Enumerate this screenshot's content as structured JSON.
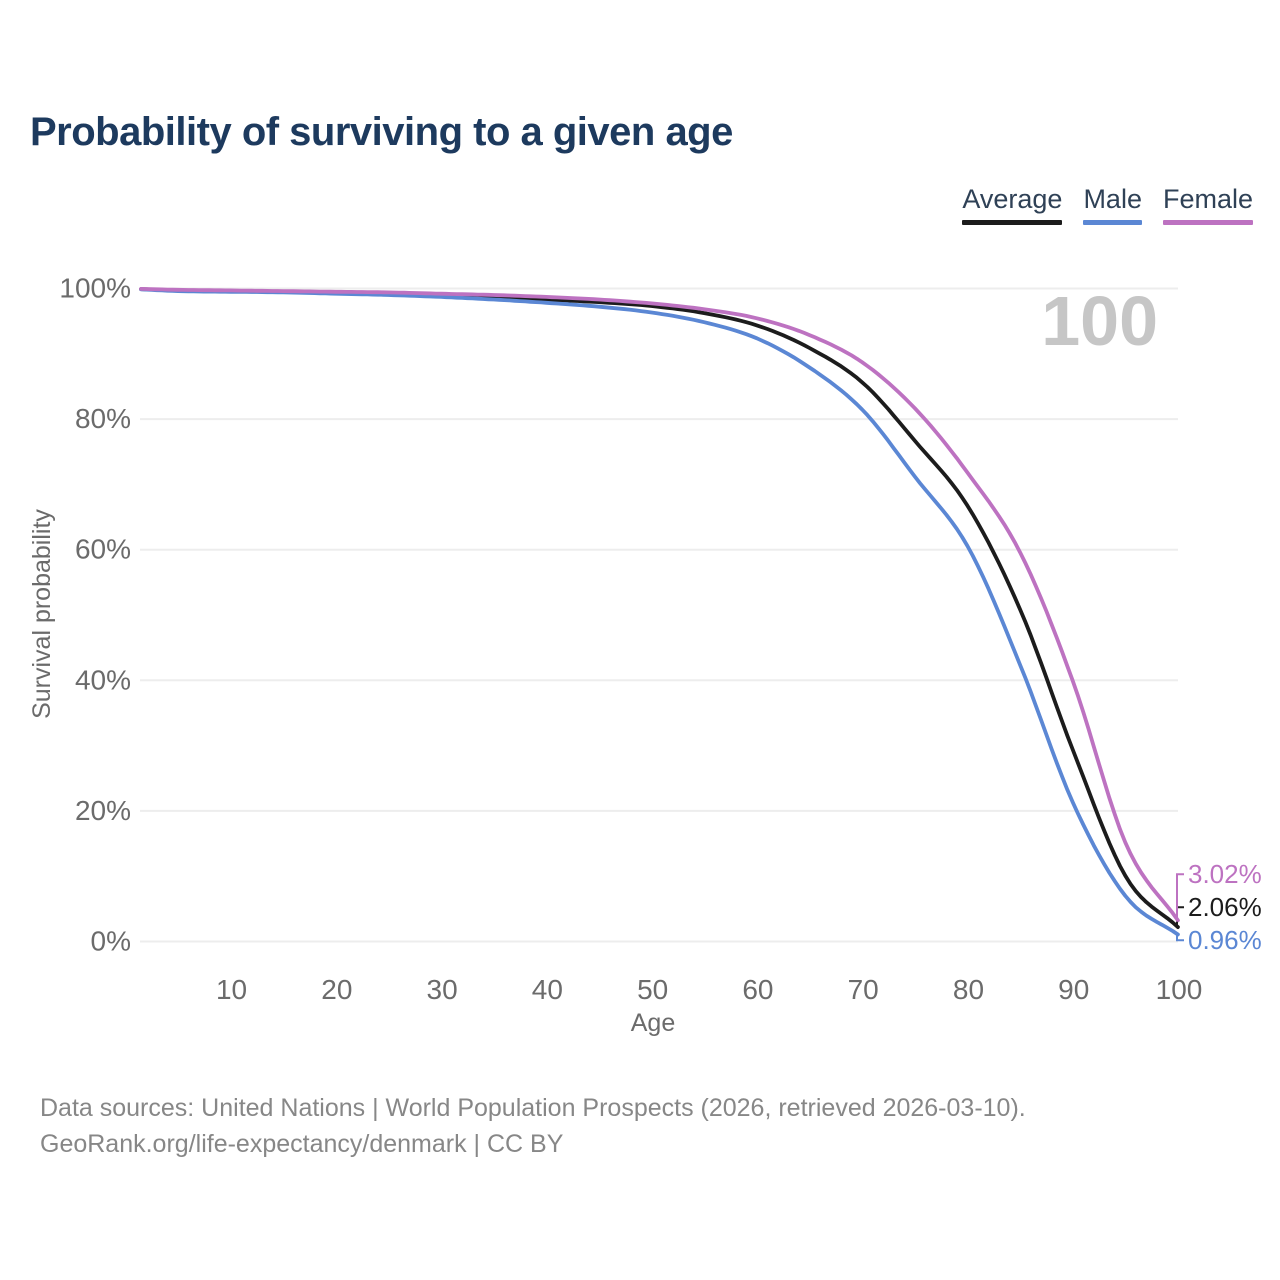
{
  "title": "Probability of surviving to a given age",
  "legend": {
    "items": [
      {
        "label": "Average",
        "color": "#1c1c1c"
      },
      {
        "label": "Male",
        "color": "#5b87d4"
      },
      {
        "label": "Female",
        "color": "#bd72c1"
      }
    ]
  },
  "chart_data": {
    "type": "line",
    "title": "Probability of surviving to a given age",
    "xlabel": "Age",
    "ylabel": "Survival probability",
    "xlim": [
      0,
      100
    ],
    "ylim": [
      0,
      100
    ],
    "grid": "horizontal",
    "x_ticks": [
      10,
      20,
      30,
      40,
      50,
      60,
      70,
      80,
      90,
      100
    ],
    "y_ticks": [
      0,
      20,
      40,
      60,
      80,
      100
    ],
    "y_tick_suffix": "%",
    "age_indicator": "100",
    "x": [
      0,
      5,
      10,
      15,
      20,
      25,
      30,
      35,
      40,
      45,
      50,
      55,
      60,
      65,
      70,
      75,
      80,
      85,
      90,
      95,
      100
    ],
    "series": [
      {
        "name": "Average",
        "color": "#1c1c1c",
        "end_label": "2.06%",
        "values": [
          100,
          99.7,
          99.6,
          99.5,
          99.4,
          99.2,
          99.0,
          98.7,
          98.3,
          97.9,
          97.3,
          96.2,
          94.3,
          90.8,
          85.5,
          76.5,
          66.5,
          50.5,
          29.0,
          9.8,
          2.06
        ]
      },
      {
        "name": "Male",
        "color": "#5b87d4",
        "end_label": "0.96%",
        "values": [
          100,
          99.6,
          99.5,
          99.4,
          99.2,
          99.0,
          98.7,
          98.3,
          97.8,
          97.2,
          96.3,
          94.8,
          92.3,
          87.8,
          81.3,
          71.0,
          60.3,
          42.0,
          21.0,
          6.8,
          0.96
        ]
      },
      {
        "name": "Female",
        "color": "#bd72c1",
        "end_label": "3.02%",
        "values": [
          100,
          99.8,
          99.7,
          99.6,
          99.5,
          99.4,
          99.2,
          99.0,
          98.7,
          98.3,
          97.7,
          96.8,
          95.4,
          92.8,
          88.6,
          81.5,
          71.6,
          59.3,
          39.5,
          14.8,
          3.02
        ]
      }
    ]
  },
  "footer": {
    "line1": "Data sources: United Nations | World Population Prospects (2026, retrieved 2026-03-10).",
    "line2": "GeoRank.org/life-expectancy/denmark | CC BY"
  }
}
